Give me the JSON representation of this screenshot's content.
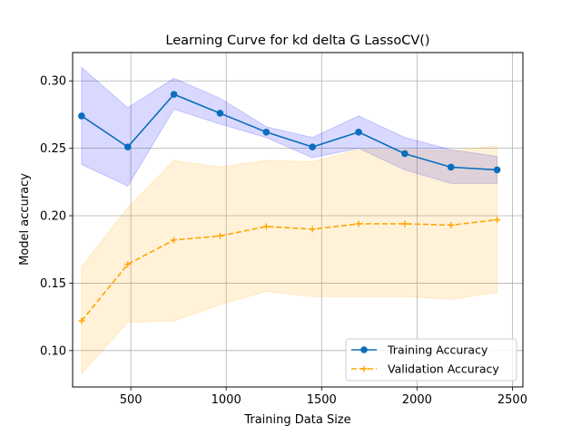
{
  "chart_data": {
    "type": "line",
    "title": "Learning Curve for kd delta G LassoCV()",
    "xlabel": "Training Data Size",
    "ylabel": "Model accuracy",
    "xlim": [
      195,
      2555
    ],
    "ylim": [
      0.073,
      0.321
    ],
    "x_ticks": [
      500,
      1000,
      1500,
      2000,
      2500
    ],
    "y_ticks": [
      0.1,
      0.15,
      0.2,
      0.25,
      0.3
    ],
    "x_tick_labels": [
      "500",
      "1000",
      "1500",
      "2000",
      "2500"
    ],
    "y_tick_labels": [
      "0.10",
      "0.15",
      "0.20",
      "0.25",
      "0.30"
    ],
    "grid": true,
    "legend_position": "lower-right",
    "x": [
      242,
      484,
      726,
      968,
      1210,
      1452,
      1694,
      1936,
      2178,
      2420
    ],
    "series": [
      {
        "name": "Training Accuracy",
        "color": "#0a6ebd",
        "band_color": "#0000ff",
        "line_style": "solid",
        "marker": "circle",
        "values": [
          0.274,
          0.251,
          0.29,
          0.276,
          0.262,
          0.251,
          0.262,
          0.246,
          0.236,
          0.234
        ],
        "band_upper": [
          0.31,
          0.28,
          0.302,
          0.287,
          0.266,
          0.258,
          0.274,
          0.258,
          0.249,
          0.244
        ],
        "band_lower": [
          0.238,
          0.222,
          0.279,
          0.268,
          0.258,
          0.243,
          0.25,
          0.234,
          0.224,
          0.224
        ]
      },
      {
        "name": "Validation Accuracy",
        "color": "#ffa500",
        "band_color": "#ffa500",
        "line_style": "dashed",
        "marker": "plus",
        "values": [
          0.122,
          0.164,
          0.182,
          0.185,
          0.192,
          0.19,
          0.194,
          0.194,
          0.193,
          0.197
        ],
        "band_upper": [
          0.162,
          0.206,
          0.241,
          0.236,
          0.241,
          0.24,
          0.249,
          0.249,
          0.248,
          0.252
        ],
        "band_lower": [
          0.083,
          0.121,
          0.122,
          0.134,
          0.144,
          0.14,
          0.14,
          0.14,
          0.138,
          0.143
        ]
      }
    ]
  }
}
